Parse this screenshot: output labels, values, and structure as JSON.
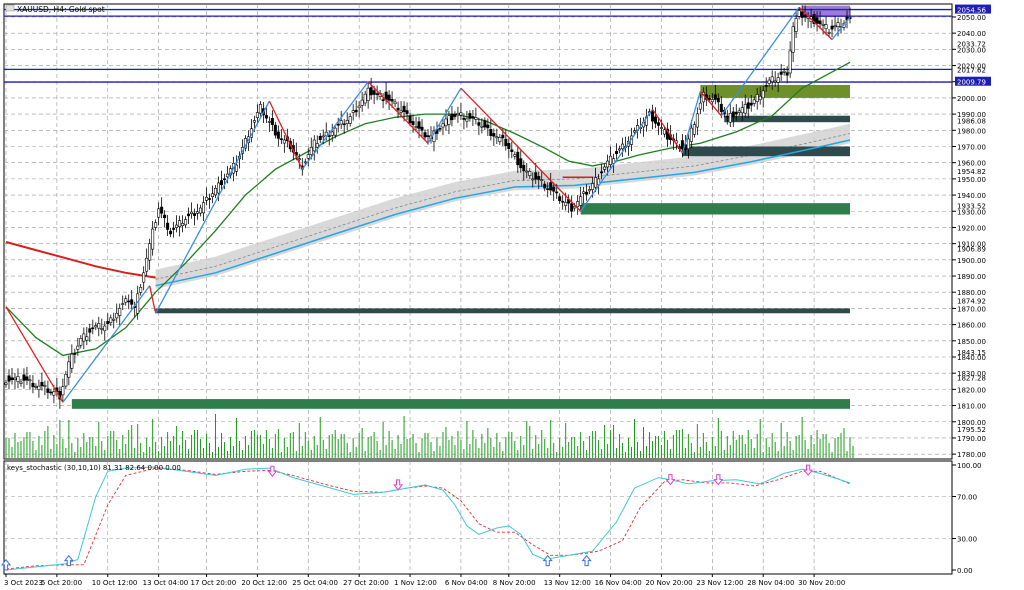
{
  "header": {
    "title": "XAUUSD, H4: Gold spot"
  },
  "indicator": {
    "label": "keys_stochastic (30,10,10) 81.31 82.64 0.00 0.00"
  },
  "colors": {
    "bull_line": "#3e8de0",
    "bear_line": "#e02020",
    "ma_green": "#1f7d1f",
    "ma_red": "#d42020",
    "ma_blue": "#24a6e8",
    "band_gray": "#cfcfcf",
    "level_blue": "#1e1eb4",
    "zone_green": "#2e7d4a",
    "zone_dark": "#2f4a4a",
    "zone_olive": "#6f8f2a",
    "zone_purple": "#a07ad8",
    "volume": "#1c9a1c",
    "stoch_main": "#3fc8d8",
    "stoch_signal": "#e03030",
    "arrow_up": "#3a6ee0",
    "arrow_down": "#e040d0"
  },
  "chart_data": [
    {
      "type": "candlestick",
      "title": "XAUUSD, H4: Gold spot",
      "ylim": [
        1777,
        2058
      ],
      "x_tick_labels": [
        "3 Oct 2023",
        "5 Oct 20:00",
        "10 Oct 12:00",
        "13 Oct 04:00",
        "17 Oct 20:00",
        "20 Oct 12:00",
        "25 Oct 04:00",
        "27 Oct 20:00",
        "1 Nov 12:00",
        "6 Nov 04:00",
        "8 Nov 20:00",
        "13 Nov 12:00",
        "16 Nov 04:00",
        "20 Nov 20:00",
        "23 Nov 12:00",
        "28 Nov 04:00",
        "30 Nov 20:00"
      ],
      "y_ticks": [
        1780,
        1790,
        1800,
        1810,
        1820,
        1830,
        1840,
        1850,
        1860,
        1870,
        1880,
        1890,
        1900,
        1910,
        1920,
        1930,
        1940,
        1950,
        1960,
        1970,
        1980,
        1990,
        2000,
        2010,
        2020,
        2030,
        2040,
        2050
      ],
      "y_tick_labels": [
        "1780.00",
        "1790.00",
        "1800.00",
        "1810.00",
        "1820.00",
        "1830.00",
        "1840.00",
        "1850.00",
        "1860.00",
        "1870.00",
        "1880.00",
        "1890.00",
        "1900.00",
        "1910.00",
        "1920.00",
        "1930.00",
        "1940.00",
        "1950.00",
        "1960.00",
        "1970.00",
        "1980.00",
        "1990.00",
        "2000.00",
        "2009.79",
        "2020.00",
        "2030.00",
        "2040.00",
        "2050.00"
      ],
      "price_labels": [
        {
          "value": 2054.56,
          "text": "2054.56",
          "highlight": true
        },
        {
          "value": 2033.72,
          "text": "2033.72"
        },
        {
          "value": 2017.62,
          "text": "2017.62"
        },
        {
          "value": 1986.08,
          "text": "1986.08"
        },
        {
          "value": 1954.82,
          "text": "1954.82"
        },
        {
          "value": 1933.52,
          "text": "1933.52"
        },
        {
          "value": 1906.89,
          "text": "1906.89"
        },
        {
          "value": 1874.92,
          "text": "1874.92"
        },
        {
          "value": 1843.15,
          "text": "1843.15"
        },
        {
          "value": 1827.28,
          "text": "1827.28"
        },
        {
          "value": 1795.52,
          "text": "1795.52"
        }
      ],
      "horizontal_levels": [
        2054.56,
        2050.5,
        2017.62,
        2009.79
      ],
      "close_path": [
        [
          0,
          1826
        ],
        [
          7,
          1826
        ],
        [
          12,
          1822
        ],
        [
          17,
          1818
        ],
        [
          19,
          1816
        ],
        [
          22,
          1836
        ],
        [
          26,
          1851
        ],
        [
          30,
          1858
        ],
        [
          35,
          1860
        ],
        [
          38,
          1868
        ],
        [
          42,
          1876
        ],
        [
          44,
          1870
        ],
        [
          46,
          1885
        ],
        [
          50,
          1917
        ],
        [
          52,
          1932
        ],
        [
          56,
          1917
        ],
        [
          60,
          1924
        ],
        [
          66,
          1932
        ],
        [
          72,
          1946
        ],
        [
          78,
          1960
        ],
        [
          82,
          1978
        ],
        [
          86,
          1994
        ],
        [
          88,
          1988
        ],
        [
          92,
          1976
        ],
        [
          96,
          1970
        ],
        [
          100,
          1958
        ],
        [
          104,
          1972
        ],
        [
          110,
          1980
        ],
        [
          116,
          1988
        ],
        [
          122,
          2004
        ],
        [
          128,
          2000
        ],
        [
          134,
          1991
        ],
        [
          140,
          1978
        ],
        [
          143,
          1976
        ],
        [
          148,
          1986
        ],
        [
          152,
          1990
        ],
        [
          158,
          1986
        ],
        [
          162,
          1980
        ],
        [
          168,
          1972
        ],
        [
          174,
          1955
        ],
        [
          180,
          1948
        ],
        [
          186,
          1938
        ],
        [
          190,
          1932
        ],
        [
          196,
          1944
        ],
        [
          202,
          1960
        ],
        [
          208,
          1972
        ],
        [
          216,
          1990
        ],
        [
          222,
          1976
        ],
        [
          228,
          1968
        ],
        [
          234,
          2002
        ],
        [
          238,
          1998
        ],
        [
          242,
          1988
        ],
        [
          250,
          1996
        ],
        [
          256,
          2010
        ],
        [
          262,
          2016
        ],
        [
          264,
          2044
        ],
        [
          266,
          2052
        ],
        [
          272,
          2047
        ],
        [
          276,
          2042
        ],
        [
          282,
          2048
        ]
      ],
      "zigzag": [
        [
          0,
          1871,
          "bear"
        ],
        [
          19,
          1812,
          "bull"
        ],
        [
          48,
          1884,
          "bear"
        ],
        [
          50,
          1867,
          "bull"
        ],
        [
          88,
          1998,
          "bear"
        ],
        [
          99,
          1956,
          "bull"
        ],
        [
          121,
          2010,
          "bear"
        ],
        [
          141,
          1972,
          "bull"
        ],
        [
          152,
          2006,
          "bear"
        ],
        [
          192,
          1930,
          "bull"
        ],
        [
          216,
          1993,
          "bear"
        ],
        [
          226,
          1966,
          "bull"
        ],
        [
          232,
          2004,
          "bear"
        ],
        [
          239,
          1989,
          "bull"
        ],
        [
          265,
          2056,
          "bear"
        ],
        [
          276,
          2036,
          "bull"
        ],
        [
          282,
          2050,
          "bull"
        ]
      ],
      "ma_green": [
        [
          0,
          1871
        ],
        [
          10,
          1852
        ],
        [
          19,
          1841
        ],
        [
          30,
          1845
        ],
        [
          40,
          1858
        ],
        [
          50,
          1880
        ],
        [
          60,
          1898
        ],
        [
          70,
          1918
        ],
        [
          80,
          1940
        ],
        [
          90,
          1956
        ],
        [
          100,
          1966
        ],
        [
          110,
          1976
        ],
        [
          120,
          1984
        ],
        [
          130,
          1988
        ],
        [
          140,
          1990
        ],
        [
          150,
          1990
        ],
        [
          160,
          1986
        ],
        [
          170,
          1978
        ],
        [
          180,
          1969
        ],
        [
          188,
          1961
        ],
        [
          196,
          1958
        ],
        [
          204,
          1961
        ],
        [
          212,
          1965
        ],
        [
          222,
          1969
        ],
        [
          232,
          1972
        ],
        [
          244,
          1979
        ],
        [
          256,
          1989
        ],
        [
          266,
          2006
        ],
        [
          274,
          2014
        ],
        [
          282,
          2022
        ]
      ],
      "ma_red": [
        [
          0,
          1911
        ],
        [
          10,
          1906
        ],
        [
          20,
          1901
        ],
        [
          30,
          1896
        ],
        [
          40,
          1892
        ],
        [
          50,
          1889
        ]
      ],
      "ma_red_2": [
        [
          186,
          1951
        ],
        [
          196,
          1951
        ]
      ],
      "ma_blue": [
        [
          50,
          1884
        ],
        [
          70,
          1892
        ],
        [
          90,
          1904
        ],
        [
          110,
          1916
        ],
        [
          130,
          1928
        ],
        [
          150,
          1938
        ],
        [
          170,
          1945
        ],
        [
          190,
          1946
        ],
        [
          210,
          1950
        ],
        [
          230,
          1954
        ],
        [
          250,
          1961
        ],
        [
          270,
          1969
        ],
        [
          282,
          1974
        ]
      ],
      "zones": [
        {
          "x0": 22,
          "x1": 282,
          "y_top": 1814,
          "y_bot": 1808,
          "type": "green"
        },
        {
          "x0": 50,
          "x1": 282,
          "y_top": 1870,
          "y_bot": 1867,
          "type": "dark"
        },
        {
          "x0": 192,
          "x1": 282,
          "y_top": 1935,
          "y_bot": 1928,
          "type": "green"
        },
        {
          "x0": 226,
          "x1": 282,
          "y_top": 1970,
          "y_bot": 1964,
          "type": "dark"
        },
        {
          "x0": 240,
          "x1": 282,
          "y_top": 1989,
          "y_bot": 1985,
          "type": "dark"
        },
        {
          "x0": 232,
          "x1": 282,
          "y_top": 2008,
          "y_bot": 2000,
          "type": "olive"
        },
        {
          "x0": 266,
          "x1": 282,
          "y_top": 2057,
          "y_bot": 2050,
          "type": "purple"
        }
      ]
    },
    {
      "type": "line",
      "title": "keys_stochastic (30,10,10) 81.31 82.64 0.00 0.00",
      "ylim": [
        0,
        100
      ],
      "y_ticks": [
        0,
        30,
        70,
        100
      ],
      "y_tick_labels": [
        "0.00",
        "30.00",
        "70.00",
        "100.00"
      ],
      "series": [
        {
          "name": "main",
          "points": [
            [
              0,
              0
            ],
            [
              10,
              3
            ],
            [
              20,
              6
            ],
            [
              24,
              10
            ],
            [
              30,
              70
            ],
            [
              34,
              94
            ],
            [
              40,
              97
            ],
            [
              50,
              98
            ],
            [
              60,
              94
            ],
            [
              70,
              90
            ],
            [
              80,
              96
            ],
            [
              88,
              97
            ],
            [
              96,
              88
            ],
            [
              106,
              80
            ],
            [
              116,
              72
            ],
            [
              126,
              74
            ],
            [
              134,
              78
            ],
            [
              140,
              81
            ],
            [
              146,
              76
            ],
            [
              150,
              62
            ],
            [
              154,
              42
            ],
            [
              158,
              34
            ],
            [
              164,
              40
            ],
            [
              168,
              42
            ],
            [
              172,
              34
            ],
            [
              176,
              15
            ],
            [
              180,
              10
            ],
            [
              186,
              13
            ],
            [
              192,
              16
            ],
            [
              196,
              18
            ],
            [
              204,
              46
            ],
            [
              210,
              78
            ],
            [
              218,
              88
            ],
            [
              222,
              86
            ],
            [
              228,
              82
            ],
            [
              236,
              85
            ],
            [
              244,
              86
            ],
            [
              252,
              82
            ],
            [
              260,
              92
            ],
            [
              266,
              96
            ],
            [
              272,
              92
            ],
            [
              282,
              83
            ]
          ]
        },
        {
          "name": "signal",
          "points": [
            [
              0,
              1
            ],
            [
              10,
              4
            ],
            [
              20,
              5
            ],
            [
              26,
              5
            ],
            [
              34,
              62
            ],
            [
              40,
              90
            ],
            [
              50,
              97
            ],
            [
              60,
              95
            ],
            [
              70,
              91
            ],
            [
              80,
              94
            ],
            [
              88,
              95
            ],
            [
              96,
              90
            ],
            [
              106,
              82
            ],
            [
              116,
              75
            ],
            [
              126,
              74
            ],
            [
              134,
              78
            ],
            [
              140,
              80
            ],
            [
              146,
              78
            ],
            [
              152,
              66
            ],
            [
              158,
              44
            ],
            [
              164,
              36
            ],
            [
              170,
              36
            ],
            [
              176,
              24
            ],
            [
              182,
              14
            ],
            [
              188,
              14
            ],
            [
              194,
              16
            ],
            [
              198,
              18
            ],
            [
              206,
              28
            ],
            [
              212,
              60
            ],
            [
              220,
              84
            ],
            [
              226,
              86
            ],
            [
              234,
              83
            ],
            [
              242,
              83
            ],
            [
              250,
              80
            ],
            [
              258,
              86
            ],
            [
              266,
              94
            ],
            [
              272,
              94
            ],
            [
              282,
              82
            ]
          ]
        }
      ],
      "arrows_up": [
        [
          0,
          3
        ],
        [
          21,
          7
        ],
        [
          181,
          7
        ],
        [
          194,
          7
        ]
      ],
      "arrows_down": [
        [
          89,
          96
        ],
        [
          131,
          83
        ],
        [
          222,
          88
        ],
        [
          238,
          88
        ],
        [
          268,
          97
        ]
      ]
    }
  ]
}
